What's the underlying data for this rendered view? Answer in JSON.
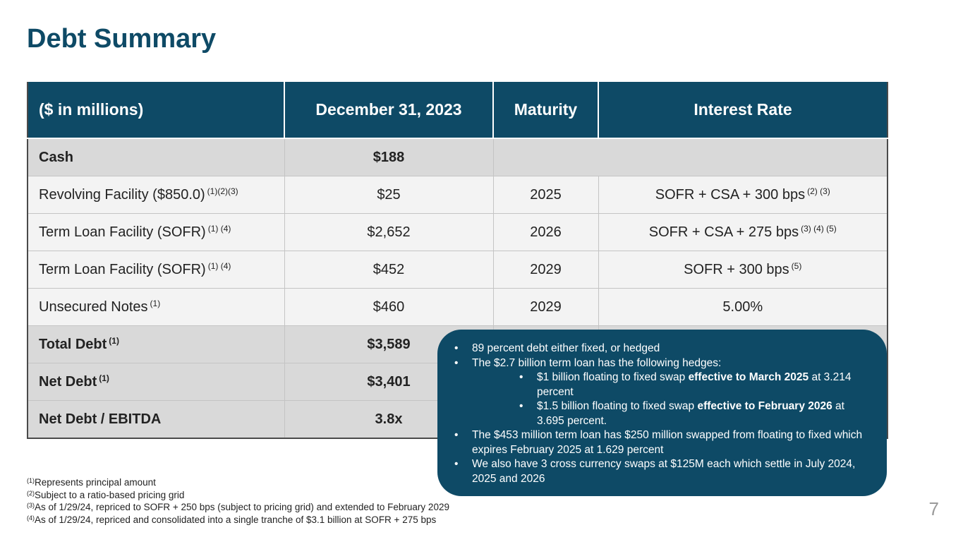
{
  "title": "Debt Summary",
  "table": {
    "headers": [
      "($ in millions)",
      "December 31, 2023",
      "Maturity",
      "Interest Rate"
    ],
    "rows": [
      {
        "label": "Cash",
        "label_note": "",
        "amount": "$188",
        "maturity": "",
        "rate": "",
        "rate_note": ""
      },
      {
        "label": "Revolving Facility ($850.0)",
        "label_note": "(1)(2)(3)",
        "amount": "$25",
        "maturity": "2025",
        "rate": "SOFR + CSA + 300 bps",
        "rate_note": "(2) (3)"
      },
      {
        "label": "Term Loan Facility (SOFR)",
        "label_note": "(1) (4)",
        "amount": "$2,652",
        "maturity": "2026",
        "rate": "SOFR + CSA + 275 bps",
        "rate_note": "(3) (4) (5)"
      },
      {
        "label": "Term Loan Facility (SOFR)",
        "label_note": "(1) (4)",
        "amount": "$452",
        "maturity": "2029",
        "rate": "SOFR + 300 bps",
        "rate_note": "(5)"
      },
      {
        "label": "Unsecured Notes",
        "label_note": "(1)",
        "amount": "$460",
        "maturity": "2029",
        "rate": "5.00%",
        "rate_note": ""
      },
      {
        "label": "Total Debt",
        "label_note": "(1)",
        "amount": "$3,589",
        "maturity": "",
        "rate": "",
        "rate_note": ""
      },
      {
        "label": "Net Debt",
        "label_note": "(1)",
        "amount": "$3,401",
        "maturity": "",
        "rate": "",
        "rate_note": ""
      },
      {
        "label": "Net Debt / EBITDA",
        "label_note": "",
        "amount": "3.8x",
        "maturity": "",
        "rate": "",
        "rate_note": ""
      }
    ]
  },
  "callout": {
    "b1": "89 percent debt either fixed, or hedged",
    "b2": "The $2.7 billion term loan has the following hedges:",
    "s1_pre": "$1 billion floating to fixed swap ",
    "s1_bold": "effective to March 2025",
    "s1_post": " at 3.214 percent",
    "s2_pre": "$1.5 billion floating to fixed swap ",
    "s2_bold": "effective to February 2026",
    "s2_post": " at 3.695 percent.",
    "b3": "The $453 million term loan has $250 million swapped from floating to fixed which expires February 2025 at 1.629 percent",
    "b4": "We also have 3 cross currency swaps at $125M each which settle in July 2024, 2025 and 2026"
  },
  "footnotes": [
    {
      "num": "(1)",
      "text": "Represents principal amount"
    },
    {
      "num": "(2)",
      "text": "Subject to a ratio-based pricing grid"
    },
    {
      "num": "(3)",
      "text": "As of 1/29/24, repriced to SOFR + 250 bps (subject to pricing grid) and extended to February 2029"
    },
    {
      "num": "(4)",
      "text": "As of 1/29/24, repriced and consolidated into a single tranche of $3.1 billion at SOFR + 275 bps"
    }
  ],
  "page_number": "7",
  "colors": {
    "brand": "#0e4a66",
    "row_gray": "#d9d9d9",
    "row_light": "#f3f3f3"
  }
}
